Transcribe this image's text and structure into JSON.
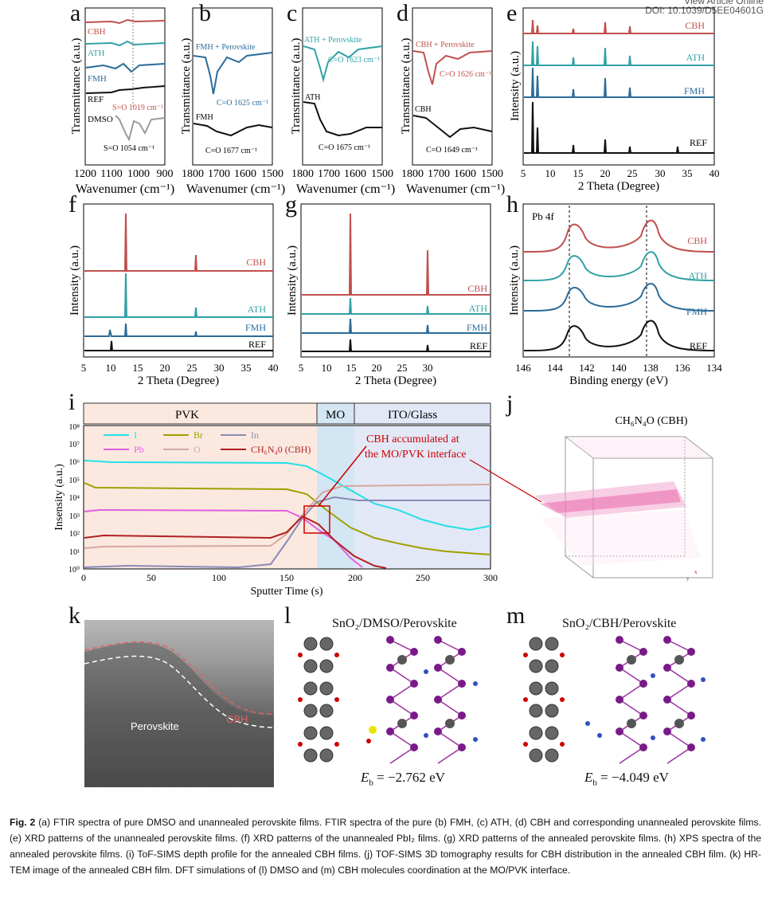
{
  "header": {
    "line1": "View Article Online",
    "doi": "DOI: 10.1039/D5EE04601G"
  },
  "panels": {
    "a": {
      "letter": "a",
      "ylabel": "Transmittance (a.u.)",
      "xlabel": "Wavenumer (cm⁻¹)",
      "xticks": [
        "1200",
        "1100",
        "1000",
        "900"
      ],
      "series": [
        "CBH",
        "ATH",
        "FMH",
        "REF",
        "DMSO"
      ],
      "ann1": "S=O 1019 cm⁻¹",
      "ann2": "S=O 1054 cm⁻¹"
    },
    "b": {
      "letter": "b",
      "xlabel": "Wavenumer (cm⁻¹)",
      "xticks": [
        "1800",
        "1700",
        "1600",
        "1500"
      ],
      "top": "FMH + Perovskite",
      "topann": "C=O 1625 cm⁻¹",
      "bottom": "FMH",
      "botann": "C=O 1677 cm⁻¹"
    },
    "c": {
      "letter": "c",
      "xlabel": "Wavenumer (cm⁻¹)",
      "xticks": [
        "1800",
        "1700",
        "1600",
        "1500"
      ],
      "top": "ATH + Perovskite",
      "topann": "C=O 1623 cm⁻¹",
      "bottom": "ATH",
      "botann": "C=O 1675 cm⁻¹"
    },
    "d": {
      "letter": "d",
      "xlabel": "Wavenumer (cm⁻¹)",
      "xticks": [
        "1800",
        "1700",
        "1600",
        "1500"
      ],
      "top": "CBH + Perovskite",
      "topann": "C=O 1626 cm⁻¹",
      "bottom": "CBH",
      "botann": "C=O 1649 cm⁻¹"
    },
    "e": {
      "letter": "e",
      "ylabel": "Intensity (a.u.)",
      "xlabel": "2 Theta (Degree)",
      "xticks": [
        "5",
        "10",
        "15",
        "20",
        "25",
        "30",
        "35",
        "40"
      ],
      "series": [
        "CBH",
        "ATH",
        "FMH",
        "REF"
      ]
    },
    "f": {
      "letter": "f",
      "ylabel": "Intensity (a.u.)",
      "xlabel": "2 Theta (Degree)",
      "xticks": [
        "5",
        "10",
        "15",
        "20",
        "25",
        "30",
        "35",
        "40"
      ],
      "series": [
        "CBH",
        "ATH",
        "FMH",
        "REF"
      ]
    },
    "g": {
      "letter": "g",
      "ylabel": "Intensity (a.u.)",
      "xlabel": "2 Theta (Degree)",
      "xticks": [
        "5",
        "10",
        "15",
        "20",
        "25",
        "30"
      ],
      "series": [
        "CBH",
        "ATH",
        "FMH",
        "REF"
      ]
    },
    "h": {
      "letter": "h",
      "ylabel": "Intensity (a.u.)",
      "xlabel": "Binding energy (eV)",
      "xticks": [
        "146",
        "144",
        "142",
        "140",
        "138",
        "136",
        "134"
      ],
      "inset": "Pb 4f",
      "series": [
        "CBH",
        "ATH",
        "FMH",
        "REF"
      ]
    },
    "i": {
      "letter": "i",
      "ylabel": "Insensity (a.u.)",
      "xlabel": "Sputter Time (s)",
      "xticks": [
        "0",
        "50",
        "100",
        "150",
        "200",
        "250",
        "300"
      ],
      "yticks": [
        "10⁰",
        "10¹",
        "10²",
        "10³",
        "10⁴",
        "10⁵",
        "10⁶",
        "10⁷",
        "10⁸"
      ],
      "regions": [
        "PVK",
        "MO",
        "ITO/Glass"
      ],
      "legend": [
        "I",
        "Br",
        "In",
        "Pb",
        "O",
        "CH₆N₄0 (CBH)"
      ],
      "callout1": "CBH accumulated at",
      "callout2": "the MO/PVK interface"
    },
    "j": {
      "letter": "j",
      "title": "CH₆N₄O (CBH)"
    },
    "k": {
      "letter": "k",
      "label1": "Perovskite",
      "label2": "CBH"
    },
    "l": {
      "letter": "l",
      "title": "SnO₂/DMSO/Perovskite",
      "eb": "−2.762 eV"
    },
    "m": {
      "letter": "m",
      "title": "SnO₂/CBH/Perovskite",
      "eb": "−4.049 eV"
    }
  },
  "eb_symbol": "E",
  "eb_sub": "b",
  "eb_eq": " = ",
  "caption": {
    "fig": "Fig. 2",
    "text": " (a) FTIR spectra of pure DMSO and unannealed perovskite films. FTIR spectra of the pure (b) FMH, (c) ATH, (d) CBH and corresponding unannealed perovskite films. (e) XRD patterns of the unannealed perovskite films. (f) XRD patterns of the unannealed PbI₂ films. (g) XRD patterns of the annealed perovskite films. (h) XPS spectra of the annealed perovskite films. (i) ToF-SIMS depth profile for the annealed CBH films. (j) TOF-SIMS 3D tomography results for CBH distribution in the annealed CBH film. (k) HR-TEM image of the annealed CBH film. DFT simulations of (l) DMSO and (m) CBH molecules coordination at the MO/PVK interface."
  },
  "colors": {
    "CBH": "#c0504d",
    "ATH": "#31a1a6",
    "FMH": "#2a6b99",
    "REF": "#111111",
    "DMSO": "#9a9a9a",
    "I": "#22e0e6",
    "Br": "#a0a000",
    "In": "#8a8ab8",
    "Pb": "#e060e0",
    "O": "#d4a8a0",
    "CH": "#b02020"
  }
}
